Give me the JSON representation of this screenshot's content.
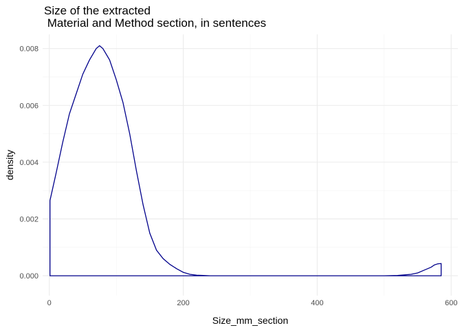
{
  "chart_data": {
    "type": "area",
    "title_lines": [
      "Size of the extracted",
      " Material and Method section, in sentences"
    ],
    "xlabel": "Size_mm_section",
    "ylabel": "density",
    "xlim": [
      -10,
      610
    ],
    "ylim": [
      -0.0007,
      0.0085
    ],
    "x_ticks": [
      0,
      200,
      400,
      600
    ],
    "x_tick_labels": [
      "0",
      "200",
      "400",
      "600"
    ],
    "y_ticks": [
      0,
      0.002,
      0.004,
      0.006,
      0.008
    ],
    "y_tick_labels": [
      "0.000",
      "0.002",
      "0.004",
      "0.006",
      "0.008"
    ],
    "grid": true,
    "line_color": "#00008b",
    "series": [
      {
        "x": [
          1,
          10,
          20,
          30,
          40,
          50,
          60,
          70,
          75,
          80,
          90,
          100,
          110,
          120,
          130,
          140,
          150,
          160,
          170,
          180,
          190,
          200,
          210,
          220,
          230,
          240,
          260,
          300,
          400,
          500,
          520,
          540,
          550,
          560,
          570,
          575,
          580,
          585
        ],
        "values": [
          0.00265,
          0.0036,
          0.0047,
          0.0057,
          0.0064,
          0.0071,
          0.0076,
          0.008,
          0.0081,
          0.008,
          0.0076,
          0.0069,
          0.0061,
          0.005,
          0.0037,
          0.0025,
          0.0015,
          0.0009,
          0.0006,
          0.0004,
          0.00025,
          0.00012,
          5e-05,
          2e-05,
          1e-05,
          0,
          0,
          0,
          0,
          0,
          1e-05,
          5e-05,
          0.0001,
          0.0002,
          0.0003,
          0.00038,
          0.00042,
          0.00043
        ]
      }
    ]
  }
}
